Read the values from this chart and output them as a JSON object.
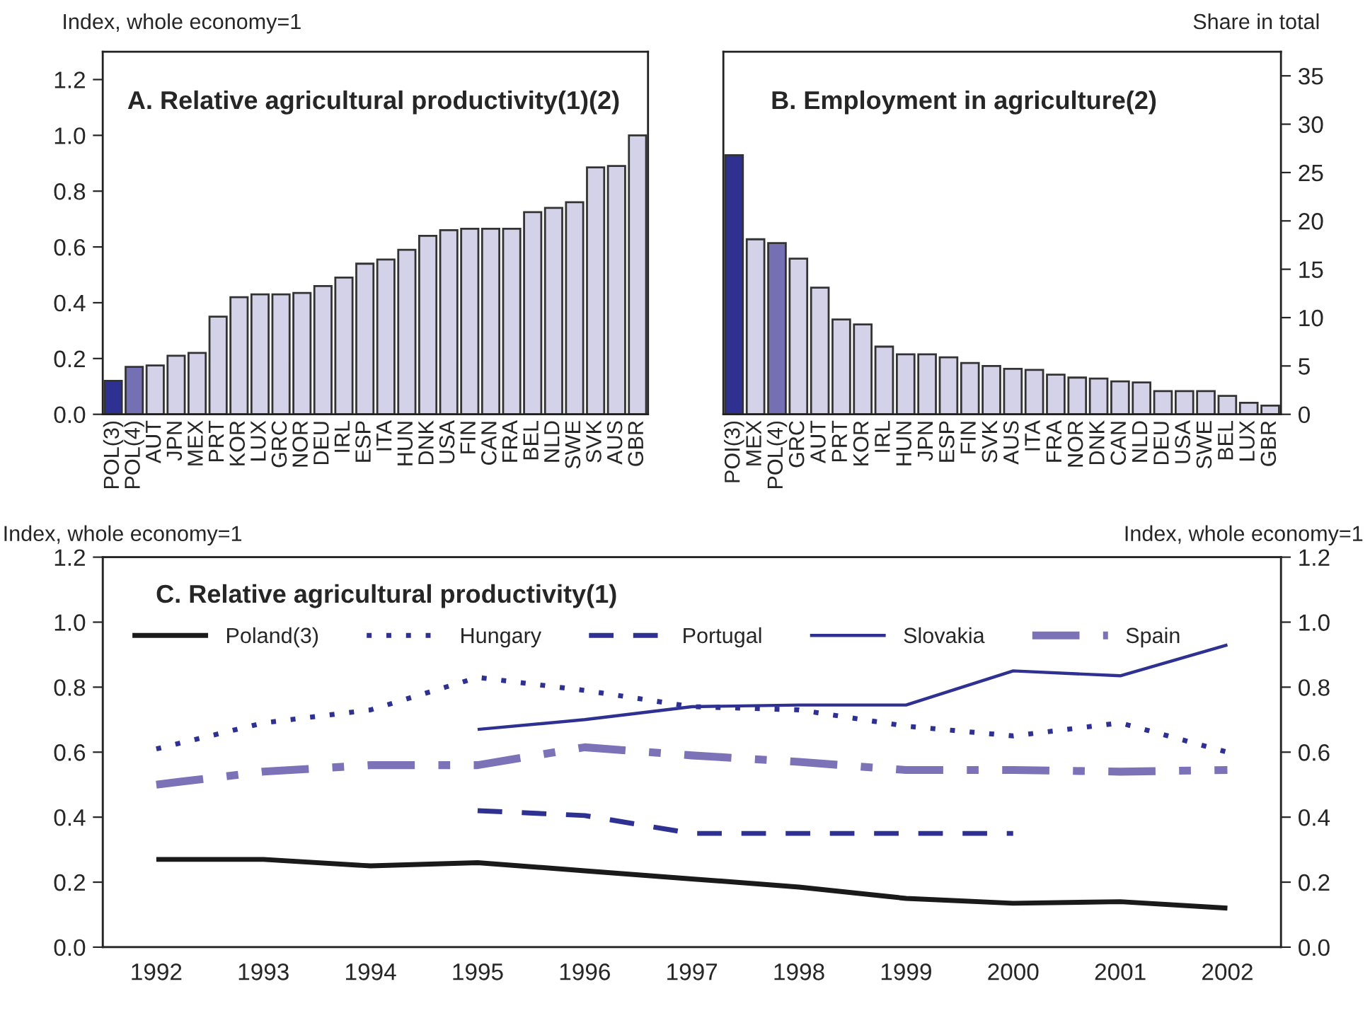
{
  "chart_data": [
    {
      "type": "bar",
      "title": "A. Relative agricultural productivity(1)(2)",
      "ylabel": "Index, whole economy=1",
      "categories": [
        "POL(3)",
        "POL(4)",
        "AUT",
        "JPN",
        "MEX",
        "PRT",
        "KOR",
        "LUX",
        "GRC",
        "NOR",
        "DEU",
        "IRL",
        "ESP",
        "ITA",
        "HUN",
        "DNK",
        "USA",
        "FIN",
        "CAN",
        "FRA",
        "BEL",
        "NLD",
        "SWE",
        "SVK",
        "AUS",
        "GBR"
      ],
      "values": [
        0.12,
        0.17,
        0.175,
        0.21,
        0.22,
        0.35,
        0.42,
        0.43,
        0.43,
        0.435,
        0.46,
        0.49,
        0.54,
        0.555,
        0.59,
        0.64,
        0.66,
        0.665,
        0.665,
        0.665,
        0.725,
        0.74,
        0.76,
        0.885,
        0.89,
        1.0
      ],
      "colors": [
        "#2e3192",
        "#7570b3",
        "#d4d2e8",
        "#d4d2e8",
        "#d4d2e8",
        "#d4d2e8",
        "#d4d2e8",
        "#d4d2e8",
        "#d4d2e8",
        "#d4d2e8",
        "#d4d2e8",
        "#d4d2e8",
        "#d4d2e8",
        "#d4d2e8",
        "#d4d2e8",
        "#d4d2e8",
        "#d4d2e8",
        "#d4d2e8",
        "#d4d2e8",
        "#d4d2e8",
        "#d4d2e8",
        "#d4d2e8",
        "#d4d2e8",
        "#d4d2e8",
        "#d4d2e8",
        "#d4d2e8"
      ],
      "ylim": [
        0,
        1.3
      ],
      "yticks": [
        {
          "value": 0,
          "label": "0.0"
        },
        {
          "value": 0.2,
          "label": "0.2"
        },
        {
          "value": 0.4,
          "label": "0.4"
        },
        {
          "value": 0.6,
          "label": "0.6"
        },
        {
          "value": 0.8,
          "label": "0.8"
        },
        {
          "value": 1.0,
          "label": "1.0"
        },
        {
          "value": 1.2,
          "label": "1.2"
        }
      ],
      "grid": false
    },
    {
      "type": "bar",
      "title": "B. Employment in agriculture(2)",
      "y2label": "Share in total",
      "categories": [
        "POI(3)",
        "MEX",
        "POL(4)",
        "GRC",
        "AUT",
        "PRT",
        "KOR",
        "IRL",
        "HUN",
        "JPN",
        "ESP",
        "FIN",
        "SVK",
        "AUS",
        "ITA",
        "FRA",
        "NOR",
        "DNK",
        "CAN",
        "NLD",
        "DEU",
        "USA",
        "SWE",
        "BEL",
        "LUX",
        "GBR"
      ],
      "series": [
        {
          "axis": "y2",
          "values": [
            26.8,
            18.1,
            17.7,
            16.1,
            13.1,
            9.8,
            9.3,
            7.0,
            6.2,
            6.2,
            5.9,
            5.3,
            5.0,
            4.7,
            4.6,
            4.1,
            3.8,
            3.7,
            3.4,
            3.3,
            2.4,
            2.4,
            2.4,
            1.9,
            1.2,
            0.9
          ]
        }
      ],
      "colors": [
        "#2e3192",
        "#d4d2e8",
        "#7570b3",
        "#d4d2e8",
        "#d4d2e8",
        "#d4d2e8",
        "#d4d2e8",
        "#d4d2e8",
        "#d4d2e8",
        "#d4d2e8",
        "#d4d2e8",
        "#d4d2e8",
        "#d4d2e8",
        "#d4d2e8",
        "#d4d2e8",
        "#d4d2e8",
        "#d4d2e8",
        "#d4d2e8",
        "#d4d2e8",
        "#d4d2e8",
        "#d4d2e8",
        "#d4d2e8",
        "#d4d2e8",
        "#d4d2e8",
        "#d4d2e8",
        "#d4d2e8"
      ],
      "y2lim": [
        0,
        37.5
      ],
      "y2ticks": [
        0,
        5,
        10,
        15,
        20,
        25,
        30,
        35
      ],
      "grid": false
    },
    {
      "type": "line",
      "title": "C. Relative agricultural productivity(1)",
      "ylabel": "Index, whole economy=1",
      "y2label": "Index, whole economy=1",
      "categories": [
        "1992",
        "1993",
        "1994",
        "1995",
        "1996",
        "1997",
        "1998",
        "1999",
        "2000",
        "2001",
        "2002"
      ],
      "series": [
        {
          "name": "Poland(3)",
          "color": "#1a1a1a",
          "line_style": "solid",
          "values": [
            0.27,
            0.27,
            0.25,
            0.26,
            0.235,
            0.21,
            0.185,
            0.15,
            0.135,
            0.14,
            0.12
          ]
        },
        {
          "name": "Hungary",
          "color": "#2e3192",
          "line_style": "dotted",
          "values": [
            0.61,
            0.69,
            0.73,
            0.83,
            0.79,
            0.74,
            0.73,
            0.68,
            0.65,
            0.69,
            0.6
          ]
        },
        {
          "name": "Portugal",
          "color": "#2e3192",
          "line_style": "dashed",
          "values": [
            null,
            null,
            null,
            0.42,
            0.405,
            0.35,
            0.35,
            0.35,
            0.35,
            null,
            null
          ]
        },
        {
          "name": "Slovakia",
          "color": "#2e3192",
          "line_style": "solid",
          "values": [
            null,
            null,
            null,
            0.67,
            0.7,
            0.74,
            0.745,
            0.745,
            0.85,
            0.835,
            0.93
          ]
        },
        {
          "name": "Spain",
          "color": "#7b72b8",
          "line_style": "dashdot",
          "values": [
            0.5,
            0.54,
            0.56,
            0.56,
            0.615,
            0.59,
            0.57,
            0.545,
            0.545,
            0.54,
            0.545
          ]
        }
      ],
      "ylim": [
        0,
        1.2
      ],
      "yticks": [
        {
          "value": 0,
          "label": "0.0"
        },
        {
          "value": 0.2,
          "label": "0.2"
        },
        {
          "value": 0.4,
          "label": "0.4"
        },
        {
          "value": 0.6,
          "label": "0.6"
        },
        {
          "value": 0.8,
          "label": "0.8"
        },
        {
          "value": 1.0,
          "label": "1.0"
        },
        {
          "value": 1.2,
          "label": "1.2"
        }
      ],
      "y2lim": [
        0,
        1.2
      ],
      "y2ticks": [
        {
          "value": 0,
          "label": "0.0"
        },
        {
          "value": 0.2,
          "label": "0.2"
        },
        {
          "value": 0.4,
          "label": "0.4"
        },
        {
          "value": 0.6,
          "label": "0.6"
        },
        {
          "value": 0.8,
          "label": "0.8"
        },
        {
          "value": 1.0,
          "label": "1.0"
        },
        {
          "value": 1.2,
          "label": "1.2"
        }
      ],
      "grid": false,
      "legend": "top",
      "marker": "none"
    }
  ]
}
